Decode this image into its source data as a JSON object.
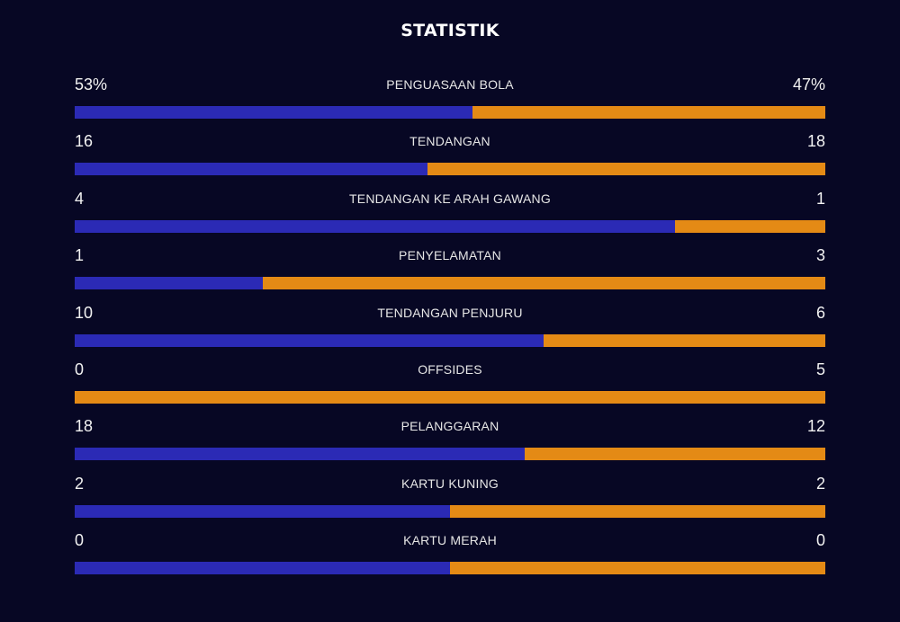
{
  "title": "STATISTIK",
  "colors": {
    "background": "#070724",
    "home_bar": "#2b2ab5",
    "away_bar": "#e48a15"
  },
  "stats": [
    {
      "label": "PENGUASAAN BOLA",
      "home": "53%",
      "away": "47%",
      "home_value": 53,
      "away_value": 47
    },
    {
      "label": "TENDANGAN",
      "home": "16",
      "away": "18",
      "home_value": 16,
      "away_value": 18
    },
    {
      "label": "TENDANGAN KE ARAH GAWANG",
      "home": "4",
      "away": "1",
      "home_value": 4,
      "away_value": 1
    },
    {
      "label": "PENYELAMATAN",
      "home": "1",
      "away": "3",
      "home_value": 1,
      "away_value": 3
    },
    {
      "label": "TENDANGAN PENJURU",
      "home": "10",
      "away": "6",
      "home_value": 10,
      "away_value": 6
    },
    {
      "label": "OFFSIDES",
      "home": "0",
      "away": "5",
      "home_value": 0,
      "away_value": 5
    },
    {
      "label": "PELANGGARAN",
      "home": "18",
      "away": "12",
      "home_value": 18,
      "away_value": 12
    },
    {
      "label": "KARTU KUNING",
      "home": "2",
      "away": "2",
      "home_value": 2,
      "away_value": 2
    },
    {
      "label": "KARTU MERAH",
      "home": "0",
      "away": "0",
      "home_value": 0,
      "away_value": 0
    }
  ]
}
